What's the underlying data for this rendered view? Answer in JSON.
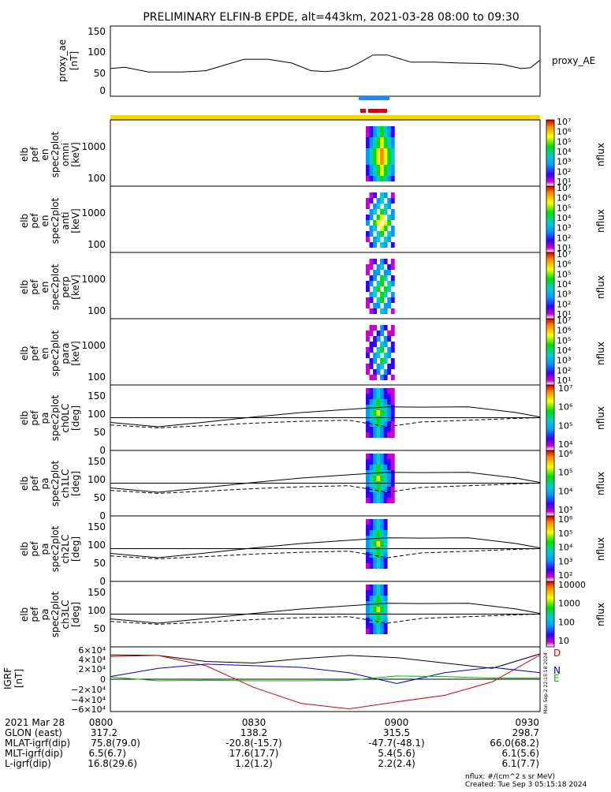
{
  "title": "PRELIMINARY ELFIN-B EPDE, alt=443km, 2021-03-28 08:00 to 09:30",
  "ae_panel": {
    "ylabel": [
      "proxy_ae",
      "[nT]"
    ],
    "side_label": "proxy_AE",
    "yticks": [
      "150",
      "100",
      "50",
      "0"
    ],
    "ylim": [
      -10,
      155
    ]
  },
  "spectra_panels": [
    {
      "ylabel": [
        "elb",
        "pef",
        "en",
        "spec2plot",
        "omni",
        "[keV]"
      ],
      "yticks": [
        "1000",
        "100"
      ],
      "cbar_ticks": [
        "10⁷",
        "10⁶",
        "10⁵",
        "10⁴",
        "10³",
        "10²",
        "10¹"
      ],
      "cbar_label": "nflux"
    },
    {
      "ylabel": [
        "elb",
        "pef",
        "en",
        "spec2plot",
        "anti",
        "[keV]"
      ],
      "yticks": [
        "1000",
        "100"
      ],
      "cbar_ticks": [
        "10⁷",
        "10⁶",
        "10⁵",
        "10⁴",
        "10³",
        "10²",
        "10¹"
      ],
      "cbar_label": "nflux"
    },
    {
      "ylabel": [
        "elb",
        "pef",
        "en",
        "spec2plot",
        "perp",
        "[keV]"
      ],
      "yticks": [
        "1000",
        "100"
      ],
      "cbar_ticks": [
        "10⁷",
        "10⁶",
        "10⁵",
        "10⁴",
        "10³",
        "10²",
        "10¹"
      ],
      "cbar_label": "nflux"
    },
    {
      "ylabel": [
        "elb",
        "pef",
        "en",
        "spec2plot",
        "para",
        "[keV]"
      ],
      "yticks": [
        "1000",
        "100"
      ],
      "cbar_ticks": [
        "10⁷",
        "10⁶",
        "10⁵",
        "10⁴",
        "10³",
        "10²",
        "10¹"
      ],
      "cbar_label": "nflux"
    }
  ],
  "pa_panels": [
    {
      "ylabel": [
        "elb",
        "pef",
        "pa",
        "spec2plot",
        "ch0LC",
        "[deg]"
      ],
      "yticks": [
        "150",
        "100",
        "50",
        "0"
      ],
      "cbar_ticks": [
        "10⁷",
        "10⁶",
        "10⁵",
        "10⁴"
      ],
      "cbar_label": "nflux"
    },
    {
      "ylabel": [
        "elb",
        "pef",
        "pa",
        "spec2plot",
        "ch1LC",
        "[deg]"
      ],
      "yticks": [
        "150",
        "100",
        "50",
        "0"
      ],
      "cbar_ticks": [
        "10⁶",
        "10⁵",
        "10⁴",
        "10³"
      ],
      "cbar_label": "nflux"
    },
    {
      "ylabel": [
        "elb",
        "pef",
        "pa",
        "spec2plot",
        "ch2LC",
        "[deg]"
      ],
      "yticks": [
        "150",
        "100",
        "50",
        "0"
      ],
      "cbar_ticks": [
        "10⁶",
        "10⁵",
        "10⁴",
        "10³",
        "10²"
      ],
      "cbar_label": "nflux"
    },
    {
      "ylabel": [
        "elb",
        "pef",
        "pa",
        "spec2plot",
        "ch3LC",
        "[deg]"
      ],
      "yticks": [
        "150",
        "100",
        "50"
      ],
      "cbar_ticks": [
        "10000",
        "1000",
        "100",
        "10"
      ],
      "cbar_label": "nflux"
    }
  ],
  "igrf_panel": {
    "ylabel": [
      "IGRF",
      "[nT]"
    ],
    "yticks": [
      "6×10⁴",
      "4×10⁴",
      "2×10⁴",
      "0",
      "−2×10⁴",
      "−4×10⁴",
      "−6×10⁴"
    ],
    "legend": [
      "D",
      "N",
      "E"
    ],
    "side_text": "Mon Sep  2 22:15:18 2024",
    "colors": {
      "D": "#dd0000",
      "N": "#0000cc",
      "E": "#00bb00",
      "total": "#000000"
    }
  },
  "footer": {
    "rows": [
      {
        "label": "2021 Mar 28",
        "values": [
          "0800",
          "0830",
          "0900",
          "0930"
        ]
      },
      {
        "label": "GLON (east)",
        "values": [
          "317.2",
          "138.2",
          "315.5",
          "298.7"
        ]
      },
      {
        "label": "MLAT-igrf(dip)",
        "values": [
          "75.8(79.0)",
          "-20.8(-15.7)",
          "-47.7(-48.1)",
          "66.0(68.2)"
        ]
      },
      {
        "label": "MLT-igrf(dip)",
        "values": [
          "6.5(6.7)",
          "17.6(17.7)",
          "5.4(5.6)",
          "6.1(5.6)"
        ]
      },
      {
        "label": "L-igrf(dip)",
        "values": [
          "16.8(29.6)",
          "1.2(1.2)",
          "2.2(2.4)",
          "6.1(7.7)"
        ]
      }
    ],
    "units_note": "nflux: #/(cm^2 s sr MeV)",
    "created": "Created: Tue Sep  3 05:15:18 2024"
  },
  "chart_data": {
    "type": "line",
    "title": "PRELIMINARY ELFIN-B EPDE, alt=443km, 2021-03-28 08:00 to 09:30",
    "x_range": [
      "08:00",
      "09:30"
    ],
    "x_ticks": [
      "0800",
      "0830",
      "0900",
      "0930"
    ],
    "grid": false,
    "proxy_ae": {
      "x_minutes": [
        0,
        3,
        8,
        15,
        20,
        28,
        33,
        38,
        42,
        45,
        47,
        50,
        52,
        55,
        58,
        63,
        68,
        73,
        78,
        82,
        86,
        88,
        90
      ],
      "y": [
        55,
        58,
        47,
        47,
        50,
        77,
        77,
        68,
        50,
        48,
        50,
        57,
        68,
        87,
        87,
        70,
        70,
        68,
        67,
        65,
        55,
        57,
        75
      ]
    },
    "spectra_activity_minutes": [
      53.5,
      59.5
    ],
    "pa_lc_line_minutes": [
      0,
      10,
      20,
      30,
      40,
      50,
      58,
      65,
      75,
      85,
      90
    ],
    "pa_lc_line_deg": [
      77,
      65,
      78,
      92,
      104,
      113,
      120,
      119,
      120,
      104,
      92
    ],
    "pa_alc_line_deg": [
      70,
      62,
      68,
      75,
      80,
      83,
      65,
      78,
      83,
      88,
      90
    ],
    "pa_90_line_deg": 90,
    "igrf": {
      "x_minutes": [
        0,
        10,
        20,
        30,
        40,
        50,
        60,
        70,
        80,
        90
      ],
      "total_nT": [
        45000,
        44000,
        33000,
        30000,
        38000,
        44000,
        40000,
        30000,
        20000,
        47000
      ],
      "D_nT": [
        42000,
        44000,
        25000,
        -15000,
        -45000,
        -55000,
        -42000,
        -30000,
        -5000,
        45000
      ],
      "N_nT": [
        5000,
        20000,
        28000,
        25000,
        22000,
        12000,
        -8000,
        12000,
        22000,
        12000
      ],
      "E_nT": [
        4000,
        -3000,
        -2000,
        -3000,
        -3000,
        -2000,
        6000,
        5000,
        2000,
        2000
      ]
    },
    "ylabel_ae": "proxy_ae [nT]",
    "ylim_ae": [
      -10,
      155
    ],
    "ylim_pa": [
      0,
      180
    ],
    "ylim_igrf": [
      -60000,
      60000
    ],
    "legend_ae": "proxy_AE"
  }
}
